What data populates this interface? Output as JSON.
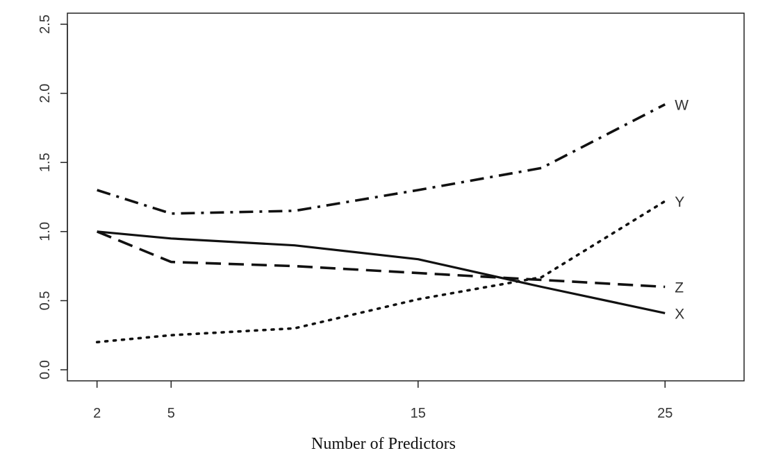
{
  "chart_data": {
    "type": "line",
    "title": "",
    "xlabel": "Number of Predictors",
    "ylabel": "",
    "xlim": [
      0.8,
      28.2
    ],
    "ylim": [
      -0.08,
      2.58
    ],
    "x_ticks": [
      "2",
      "5",
      "15",
      "25"
    ],
    "y_ticks": [
      "0.0",
      "0.5",
      "1.0",
      "1.5",
      "2.0",
      "2.5"
    ],
    "grid": false,
    "legend": "none (series labeled at right end of lines)",
    "series": [
      {
        "name": "W",
        "style": "dash-dot",
        "x": [
          2,
          5,
          10,
          15,
          20,
          25
        ],
        "y": [
          1.3,
          1.13,
          1.15,
          1.3,
          1.46,
          1.92
        ]
      },
      {
        "name": "Y",
        "style": "dotted",
        "x": [
          2,
          5,
          10,
          15,
          20,
          25
        ],
        "y": [
          0.2,
          0.25,
          0.3,
          0.51,
          0.67,
          1.22
        ]
      },
      {
        "name": "Z",
        "style": "dashed",
        "x": [
          2,
          5,
          10,
          15,
          20,
          25
        ],
        "y": [
          1.0,
          0.78,
          0.75,
          0.7,
          0.65,
          0.6
        ]
      },
      {
        "name": "X",
        "style": "solid",
        "x": [
          2,
          5,
          10,
          15,
          20,
          25
        ],
        "y": [
          1.0,
          0.95,
          0.9,
          0.8,
          0.6,
          0.41
        ]
      }
    ]
  }
}
